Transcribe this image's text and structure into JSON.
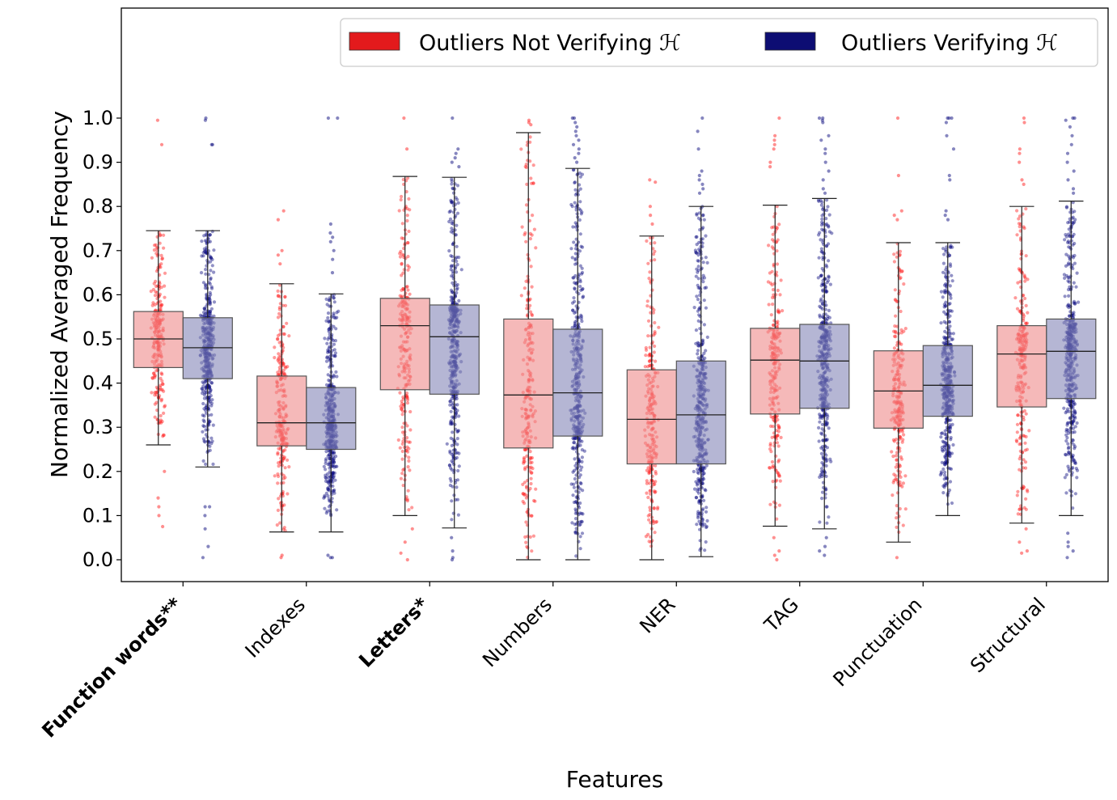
{
  "chart_data": {
    "type": "box",
    "xlabel": "Features",
    "ylabel": "Normalized Averaged Frequency",
    "ylim": [
      -0.05,
      1.25
    ],
    "yticks": [
      "0.0",
      "0.1",
      "0.2",
      "0.3",
      "0.4",
      "0.5",
      "0.6",
      "0.7",
      "0.8",
      "0.9",
      "1.0"
    ],
    "grid": false,
    "legend_position": "top-right",
    "series": [
      {
        "name": "Outliers Not Verifying 𝓗",
        "color": "#e31a1c",
        "box_color": "#ee8a8b",
        "point_color": "#ff2020"
      },
      {
        "name": "Outliers Verifying 𝓗",
        "color": "#0d0d73",
        "box_color": "#8486b8",
        "point_color": "#0d0d80"
      }
    ],
    "legend_labels": [
      "Outliers Not Verifying ℋ",
      "Outliers Verifying ℋ"
    ],
    "categories": [
      {
        "label": "Function words**",
        "bold": true
      },
      {
        "label": "Indexes",
        "bold": false
      },
      {
        "label": "Letters*",
        "bold": true
      },
      {
        "label": "Numbers",
        "bold": false
      },
      {
        "label": "NER",
        "bold": false
      },
      {
        "label": "TAG",
        "bold": false
      },
      {
        "label": "Punctuation",
        "bold": false
      },
      {
        "label": "Structural",
        "bold": false
      }
    ],
    "boxes": [
      [
        {
          "whislo": 0.26,
          "q1": 0.435,
          "med": 0.5,
          "q3": 0.562,
          "whishi": 0.745,
          "n": 240,
          "outliers": [
            0.995,
            0.94,
            0.2,
            0.14,
            0.12,
            0.1,
            0.075
          ]
        },
        {
          "whislo": 0.21,
          "q1": 0.41,
          "med": 0.48,
          "q3": 0.548,
          "whishi": 0.745,
          "n": 420,
          "outliers": [
            1.0,
            0.995,
            0.94,
            0.94,
            0.12,
            0.12,
            0.1,
            0.07,
            0.03,
            0.005
          ]
        }
      ],
      [
        {
          "whislo": 0.063,
          "q1": 0.258,
          "med": 0.31,
          "q3": 0.416,
          "whishi": 0.625,
          "n": 240,
          "outliers": [
            0.79,
            0.77,
            0.7,
            0.69,
            0.67,
            0.01,
            0.005
          ]
        },
        {
          "whislo": 0.063,
          "q1": 0.25,
          "med": 0.31,
          "q3": 0.39,
          "whishi": 0.602,
          "n": 420,
          "outliers": [
            1.0,
            1.0,
            0.76,
            0.74,
            0.73,
            0.72,
            0.7,
            0.68,
            0.65,
            0.01,
            0.005,
            0.005
          ]
        }
      ],
      [
        {
          "whislo": 0.1,
          "q1": 0.385,
          "med": 0.53,
          "q3": 0.592,
          "whishi": 0.868,
          "n": 240,
          "outliers": [
            1.0,
            0.93,
            0.07,
            0.04,
            0.015,
            0.0
          ]
        },
        {
          "whislo": 0.072,
          "q1": 0.375,
          "med": 0.505,
          "q3": 0.577,
          "whishi": 0.866,
          "n": 420,
          "outliers": [
            1.0,
            0.93,
            0.92,
            0.91,
            0.9,
            0.89,
            0.05,
            0.02,
            0.005,
            0.0
          ]
        }
      ],
      [
        {
          "whislo": 0.0,
          "q1": 0.253,
          "med": 0.373,
          "q3": 0.545,
          "whishi": 0.967,
          "n": 240,
          "outliers": [
            0.995,
            0.99,
            0.985
          ]
        },
        {
          "whislo": 0.0,
          "q1": 0.28,
          "med": 0.378,
          "q3": 0.522,
          "whishi": 0.886,
          "n": 420,
          "outliers": [
            1.0,
            1.0,
            0.99,
            0.98,
            0.97,
            0.96,
            0.95,
            0.94,
            0.93,
            0.92,
            0.91,
            0.9
          ]
        }
      ],
      [
        {
          "whislo": 0.0,
          "q1": 0.217,
          "med": 0.318,
          "q3": 0.43,
          "whishi": 0.733,
          "n": 240,
          "outliers": [
            0.86,
            0.855,
            0.8,
            0.78,
            0.76
          ]
        },
        {
          "whislo": 0.007,
          "q1": 0.217,
          "med": 0.328,
          "q3": 0.45,
          "whishi": 0.8,
          "n": 420,
          "outliers": [
            1.0,
            0.97,
            0.93,
            0.88,
            0.87,
            0.86,
            0.85,
            0.84,
            0.83
          ]
        }
      ],
      [
        {
          "whislo": 0.076,
          "q1": 0.33,
          "med": 0.452,
          "q3": 0.524,
          "whishi": 0.803,
          "n": 240,
          "outliers": [
            1.0,
            0.96,
            0.95,
            0.94,
            0.93,
            0.9,
            0.89,
            0.05,
            0.02,
            0.01,
            0.0
          ]
        },
        {
          "whislo": 0.07,
          "q1": 0.343,
          "med": 0.45,
          "q3": 0.533,
          "whishi": 0.818,
          "n": 420,
          "outliers": [
            1.0,
            1.0,
            0.995,
            0.99,
            0.96,
            0.95,
            0.93,
            0.92,
            0.9,
            0.88,
            0.86,
            0.84,
            0.83,
            0.05,
            0.03,
            0.02,
            0.01
          ]
        }
      ],
      [
        {
          "whislo": 0.04,
          "q1": 0.298,
          "med": 0.382,
          "q3": 0.473,
          "whishi": 0.718,
          "n": 240,
          "outliers": [
            1.0,
            0.87,
            0.79,
            0.78,
            0.77,
            0.005
          ]
        },
        {
          "whislo": 0.1,
          "q1": 0.325,
          "med": 0.395,
          "q3": 0.485,
          "whishi": 0.718,
          "n": 420,
          "outliers": [
            1.0,
            1.0,
            1.0,
            0.99,
            0.96,
            0.93,
            0.87,
            0.86,
            0.79,
            0.78,
            0.77
          ]
        }
      ],
      [
        {
          "whislo": 0.083,
          "q1": 0.346,
          "med": 0.466,
          "q3": 0.53,
          "whishi": 0.8,
          "n": 240,
          "outliers": [
            1.0,
            0.99,
            0.93,
            0.92,
            0.9,
            0.86,
            0.85,
            0.07,
            0.04,
            0.02,
            0.015
          ]
        },
        {
          "whislo": 0.1,
          "q1": 0.365,
          "med": 0.472,
          "q3": 0.545,
          "whishi": 0.812,
          "n": 420,
          "outliers": [
            1.0,
            1.0,
            0.995,
            0.98,
            0.96,
            0.94,
            0.92,
            0.9,
            0.88,
            0.86,
            0.84,
            0.83,
            0.06,
            0.04,
            0.03,
            0.02,
            0.005
          ]
        }
      ]
    ]
  }
}
